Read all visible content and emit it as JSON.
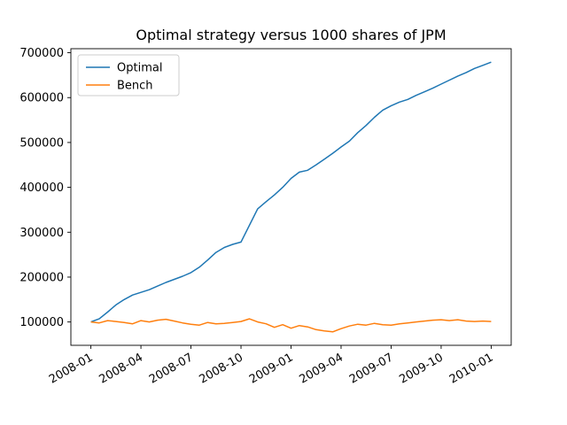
{
  "chart_data": {
    "type": "line",
    "title": "Optimal strategy versus 1000 shares of JPM",
    "xlabel": "",
    "ylabel": "",
    "grid": false,
    "legend_position": "upper left",
    "xlim": [
      -1.2,
      25.2
    ],
    "ylim": [
      48000,
      709000
    ],
    "x_unit": "months since 2008-01",
    "x": [
      0,
      0.5,
      1,
      1.5,
      2,
      2.5,
      3,
      3.5,
      4,
      4.5,
      5,
      5.5,
      6,
      6.5,
      7,
      7.5,
      8,
      8.5,
      9,
      9.5,
      10,
      10.5,
      11,
      11.5,
      12,
      12.5,
      13,
      13.5,
      14,
      14.5,
      15,
      15.5,
      16,
      16.5,
      17,
      17.5,
      18,
      18.5,
      19,
      19.5,
      20,
      20.5,
      21,
      21.5,
      22,
      22.5,
      23,
      23.5,
      24
    ],
    "series": [
      {
        "name": "Optimal",
        "color": "#1f77b4",
        "values": [
          100000,
          107000,
          122000,
          138000,
          150000,
          160000,
          166000,
          172000,
          180000,
          188000,
          195000,
          202000,
          210000,
          222000,
          238000,
          255000,
          266000,
          273000,
          278000,
          315000,
          352000,
          368000,
          383000,
          400000,
          420000,
          434000,
          438000,
          450000,
          463000,
          476000,
          490000,
          503000,
          522000,
          538000,
          556000,
          572000,
          582000,
          590000,
          596000,
          605000,
          613000,
          621000,
          630000,
          639000,
          648000,
          656000,
          665000,
          672000,
          679000
        ]
      },
      {
        "name": "Bench",
        "color": "#ff7f0e",
        "values": [
          100000,
          98000,
          103000,
          101000,
          99000,
          96000,
          103000,
          100000,
          104000,
          106000,
          102000,
          98000,
          95000,
          93000,
          99000,
          96000,
          97000,
          99000,
          101000,
          107000,
          100000,
          96000,
          88000,
          94000,
          86000,
          92000,
          89000,
          83000,
          80000,
          78000,
          85000,
          91000,
          95000,
          93000,
          97000,
          94000,
          93000,
          96000,
          98000,
          100000,
          102000,
          104000,
          105000,
          103000,
          105000,
          102000,
          101000,
          102000,
          101000
        ]
      }
    ],
    "x_ticks": [
      {
        "pos": 0,
        "label": "2008-01"
      },
      {
        "pos": 3,
        "label": "2008-04"
      },
      {
        "pos": 6,
        "label": "2008-07"
      },
      {
        "pos": 9,
        "label": "2008-10"
      },
      {
        "pos": 12,
        "label": "2009-01"
      },
      {
        "pos": 15,
        "label": "2009-04"
      },
      {
        "pos": 18,
        "label": "2009-07"
      },
      {
        "pos": 21,
        "label": "2009-10"
      },
      {
        "pos": 24,
        "label": "2010-01"
      }
    ],
    "y_ticks": [
      {
        "value": 100000,
        "label": "100000"
      },
      {
        "value": 200000,
        "label": "200000"
      },
      {
        "value": 300000,
        "label": "300000"
      },
      {
        "value": 400000,
        "label": "400000"
      },
      {
        "value": 500000,
        "label": "500000"
      },
      {
        "value": 600000,
        "label": "600000"
      },
      {
        "value": 700000,
        "label": "700000"
      }
    ]
  }
}
